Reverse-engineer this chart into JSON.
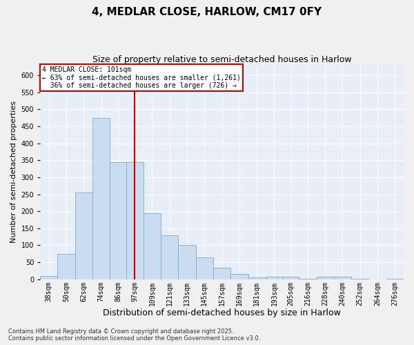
{
  "title": "4, MEDLAR CLOSE, HARLOW, CM17 0FY",
  "subtitle": "Size of property relative to semi-detached houses in Harlow",
  "xlabel": "Distribution of semi-detached houses by size in Harlow",
  "ylabel": "Number of semi-detached properties",
  "bar_color": "#c9dcf0",
  "bar_edge_color": "#7aadd4",
  "background_color": "#e8eef8",
  "grid_color": "#ffffff",
  "vline_x": 103,
  "vline_color": "#cc0000",
  "annotation_text": "4 MEDLAR CLOSE: 101sqm\n← 63% of semi-detached houses are smaller (1,261)\n  36% of semi-detached houses are larger (726) →",
  "annotation_box_color": "#cc0000",
  "bins": [
    38,
    50,
    62,
    74,
    86,
    97,
    109,
    121,
    133,
    145,
    157,
    169,
    181,
    193,
    205,
    216,
    228,
    240,
    252,
    264,
    276,
    288
  ],
  "bin_labels": [
    "38sqm",
    "50sqm",
    "62sqm",
    "74sqm",
    "86sqm",
    "97sqm",
    "109sqm",
    "121sqm",
    "133sqm",
    "145sqm",
    "157sqm",
    "169sqm",
    "181sqm",
    "193sqm",
    "205sqm",
    "216sqm",
    "228sqm",
    "240sqm",
    "252sqm",
    "264sqm",
    "276sqm"
  ],
  "values": [
    10,
    75,
    255,
    475,
    345,
    345,
    195,
    130,
    100,
    65,
    35,
    15,
    5,
    8,
    8,
    2,
    8,
    8,
    1,
    0,
    2
  ],
  "ylim": [
    0,
    630
  ],
  "yticks": [
    0,
    50,
    100,
    150,
    200,
    250,
    300,
    350,
    400,
    450,
    500,
    550,
    600
  ],
  "footnote": "Contains HM Land Registry data © Crown copyright and database right 2025.\nContains public sector information licensed under the Open Government Licence v3.0.",
  "title_fontsize": 11,
  "subtitle_fontsize": 9,
  "xlabel_fontsize": 9,
  "ylabel_fontsize": 8,
  "tick_fontsize": 7,
  "footnote_fontsize": 6
}
